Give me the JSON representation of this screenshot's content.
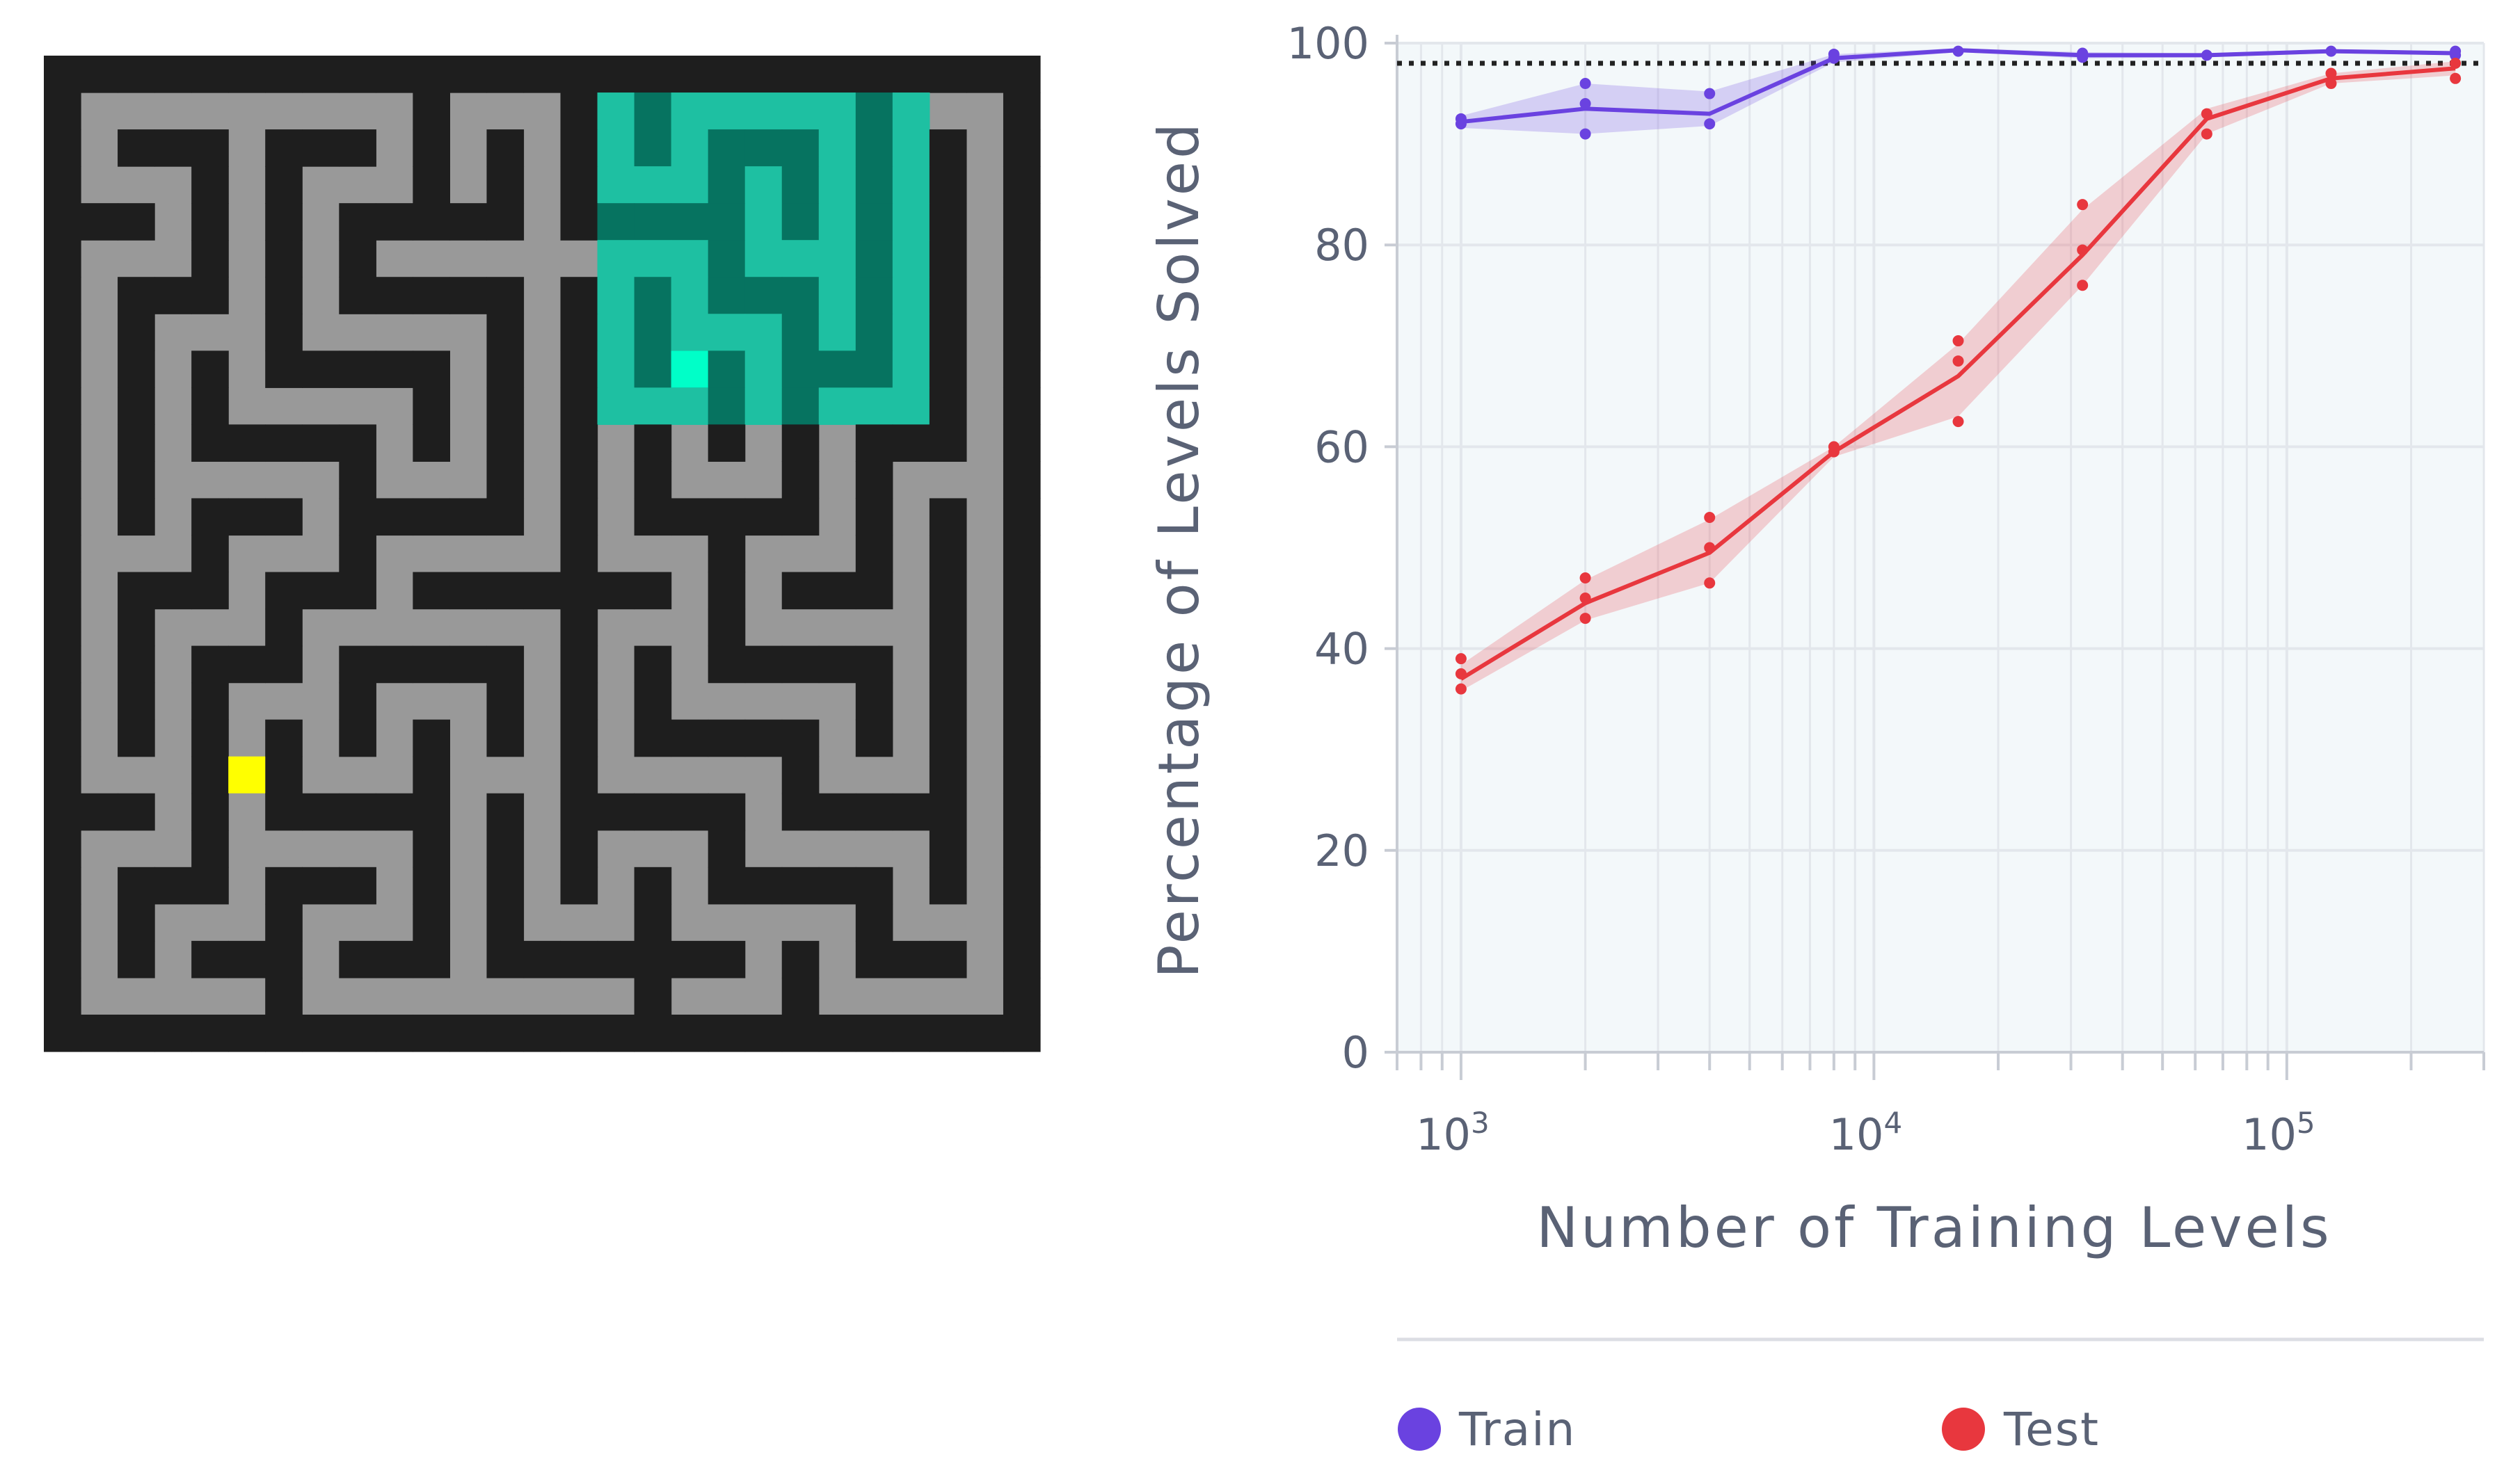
{
  "maze_panel": {
    "maze_grid": [
      "###########################",
      "#.........#...#.#.....#...#",
      "#.###.###.#.#.#.#.###.#.#.#",
      "#...#.#...#.#.#...#.#.#.#.#",
      "###.#.#.#####.#####.#.#.#.#",
      "#...#.#.#.........#...#.#.#",
      "#.###.#.#####.#.#.###.#.#.#",
      "#.#...#.....#.#.#...#.#.#.#",
      "#.#.#.#####.#.#.###.###.#.#",
      "#.#.#.....#.#.#...#.#...#.#",
      "#.#.#####.#.#.#.#.#.#.###.#",
      "#.#.....#...#.#.#...#.#...#",
      "#.#.###.#####.#.#####.#.#.#",
      "#...#...#.....#...#...#.#.#",
      "#.###.###.#######.#.###.#.#",
      "#.#...#.......#...#.....#.#",
      "#.#.###.#####.#.#.#####.#.#",
      "#.#.#...#...#.#.#.....#.#.#",
      "#.#.#.#.#.#.#.#.#####.#.#.#",
      "#...#.#...#...#.....#...#.#",
      "###.#.#####.#.#####.#####.#",
      "#...#.....#.#.#...#.....#.#",
      "#.###.###.#.#.#.#.#####.#.#",
      "#.#...#...#.#...#.....#...#",
      "#.#.###.###.#######.#.###.#",
      "#.....#.........#...#.....#",
      "###########################"
    ],
    "agent_cell": [
      8,
      17
    ],
    "goal_cell": [
      19,
      5
    ],
    "visible_region_cells": [
      [
        1,
        15
      ],
      [
        9,
        23
      ]
    ],
    "colors": {
      "floor": "#999999",
      "wall": "#1e1e1e",
      "visible_floor": "#1ec0a2",
      "visible_wall": "#067360",
      "agent": "#00ffc8",
      "goal": "#ffff00"
    }
  },
  "chart_data": {
    "type": "line",
    "xscale": "log",
    "xlim": [
      700,
      300000
    ],
    "ylim": [
      0,
      100
    ],
    "xlabel": "Number of Training Levels",
    "ylabel": "Percentage of Levels Solved",
    "x_ticks": [
      1000,
      10000,
      100000
    ],
    "x_tick_labels": [
      {
        "base": "10",
        "exp": "3"
      },
      {
        "base": "10",
        "exp": "4"
      },
      {
        "base": "10",
        "exp": "5"
      }
    ],
    "y_ticks": [
      0,
      20,
      40,
      60,
      80,
      100
    ],
    "reference_line": {
      "y": 98,
      "style": "dotted",
      "color": "#222222"
    },
    "grid": true,
    "legend_position": "bottom",
    "series": [
      {
        "name": "Train",
        "color": "#6a42e0",
        "x": [
          1000,
          2000,
          4000,
          8000,
          16000,
          32000,
          64000,
          128000,
          256000
        ],
        "values": [
          92.2,
          93.5,
          93.0,
          98.5,
          99.3,
          98.8,
          98.8,
          99.2,
          99.0
        ],
        "band_low": [
          91.6,
          91.0,
          91.8,
          98.1,
          99.1,
          98.5,
          98.6,
          99.0,
          98.8
        ],
        "band_high": [
          92.8,
          96.0,
          95.2,
          98.9,
          99.5,
          99.1,
          99.0,
          99.4,
          99.2
        ],
        "points": [
          [
            1000,
            92.0
          ],
          [
            1000,
            92.5
          ],
          [
            2000,
            91.0
          ],
          [
            2000,
            94.0
          ],
          [
            2000,
            96.0
          ],
          [
            4000,
            92.0
          ],
          [
            4000,
            95.0
          ],
          [
            8000,
            98.5
          ],
          [
            8000,
            98.9
          ],
          [
            16000,
            99.2
          ],
          [
            32000,
            98.6
          ],
          [
            32000,
            99.0
          ],
          [
            64000,
            98.8
          ],
          [
            128000,
            99.2
          ],
          [
            256000,
            98.8
          ],
          [
            256000,
            99.2
          ]
        ]
      },
      {
        "name": "Test",
        "color": "#e8373e",
        "x": [
          1000,
          2000,
          4000,
          8000,
          16000,
          32000,
          64000,
          128000,
          256000
        ],
        "values": [
          37.0,
          44.5,
          49.5,
          59.5,
          67.0,
          79.0,
          92.5,
          96.5,
          97.5
        ],
        "band_low": [
          35.8,
          42.8,
          46.5,
          59.0,
          63.0,
          76.0,
          91.0,
          96.0,
          96.8
        ],
        "band_high": [
          38.4,
          46.8,
          52.8,
          60.0,
          70.2,
          83.5,
          93.5,
          97.0,
          98.2
        ],
        "points": [
          [
            1000,
            36.0
          ],
          [
            1000,
            37.5
          ],
          [
            1000,
            39.0
          ],
          [
            2000,
            43.0
          ],
          [
            2000,
            45.0
          ],
          [
            2000,
            47.0
          ],
          [
            4000,
            46.5
          ],
          [
            4000,
            50.0
          ],
          [
            4000,
            53.0
          ],
          [
            8000,
            59.5
          ],
          [
            8000,
            60.0
          ],
          [
            16000,
            62.5
          ],
          [
            16000,
            68.5
          ],
          [
            16000,
            70.5
          ],
          [
            32000,
            76.0
          ],
          [
            32000,
            79.5
          ],
          [
            32000,
            84.0
          ],
          [
            64000,
            91.0
          ],
          [
            64000,
            93.0
          ],
          [
            128000,
            96.0
          ],
          [
            128000,
            97.0
          ],
          [
            256000,
            96.5
          ],
          [
            256000,
            98.0
          ]
        ]
      }
    ]
  }
}
